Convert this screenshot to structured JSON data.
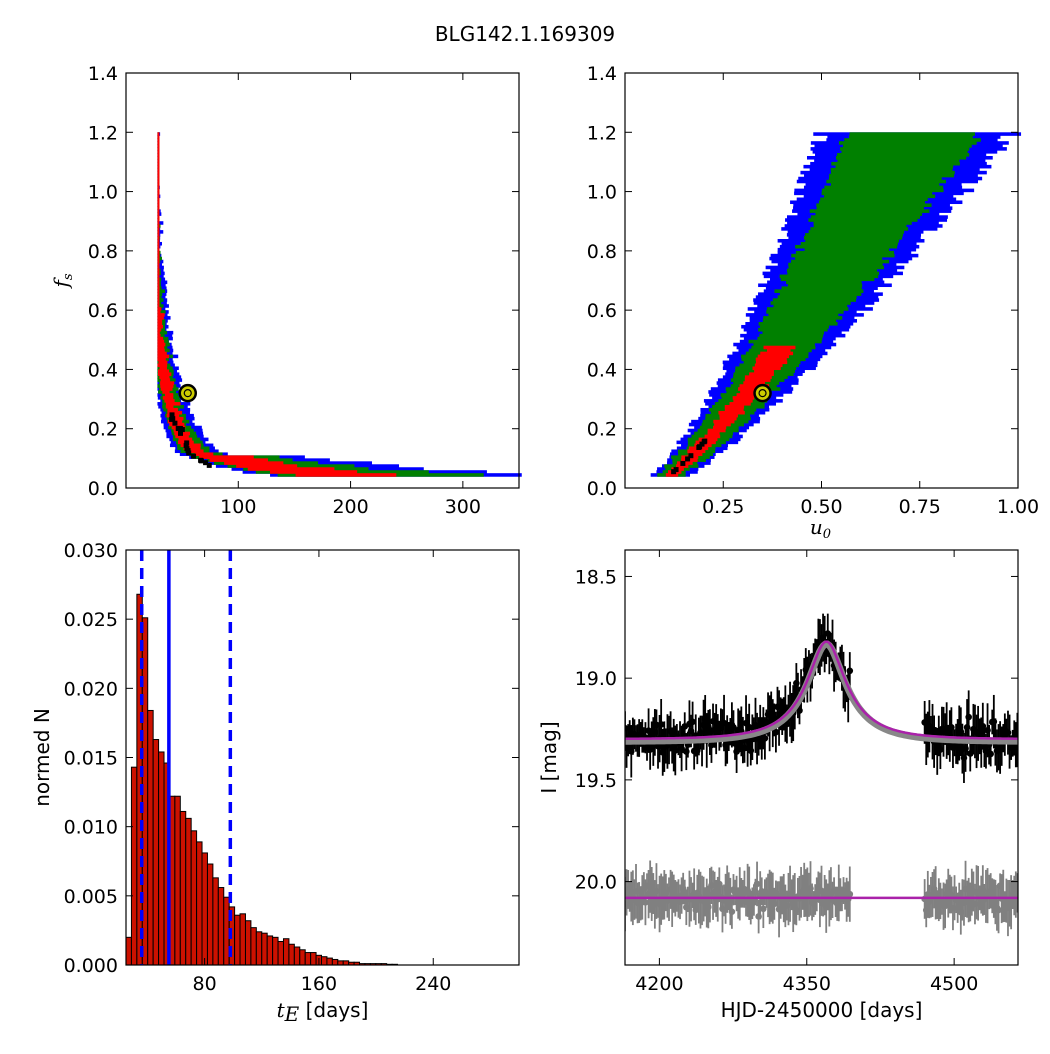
{
  "title": "BLG142.1.169309",
  "colors": {
    "blue": "#0000ff",
    "green": "#008000",
    "red": "#ff0000",
    "black": "#000000",
    "hist_fill": "#cc1100",
    "model": "#aa22aa",
    "residual": "#808080",
    "best_fit_marker": "#cccc00"
  },
  "chart_data": [
    {
      "id": "fs-vs-tE",
      "type": "heatmap",
      "title": "",
      "xlabel": "",
      "ylabel": "f_s",
      "xlim": [
        0,
        350
      ],
      "ylim": [
        0.0,
        1.4
      ],
      "xticks": [
        100,
        200,
        300
      ],
      "yticks": [
        0.0,
        0.2,
        0.4,
        0.6,
        0.8,
        1.0,
        1.2,
        1.4
      ],
      "xtick_labels": [
        "100",
        "200",
        "300"
      ],
      "ytick_labels": [
        "0.0",
        "0.2",
        "0.4",
        "0.6",
        "0.8",
        "1.0",
        "1.2",
        "1.4"
      ],
      "levels": [
        "blue",
        "green",
        "red",
        "black"
      ],
      "ridge": "tE = 20.3 / fs^0.5 approx (curved band)",
      "best_fit": {
        "tE": 55,
        "fs": 0.32
      }
    },
    {
      "id": "fs-vs-u0",
      "type": "heatmap",
      "title": "",
      "xlabel": "u_0",
      "ylabel": "",
      "xlim": [
        0.0,
        1.0
      ],
      "ylim": [
        0.0,
        1.4
      ],
      "xticks": [
        0.25,
        0.5,
        0.75,
        1.0
      ],
      "yticks": [
        0.0,
        0.2,
        0.4,
        0.6,
        0.8,
        1.0,
        1.2,
        1.4
      ],
      "xtick_labels": [
        "0.25",
        "0.50",
        "0.75",
        "1.00"
      ],
      "ytick_labels": [
        "0.0",
        "0.2",
        "0.4",
        "0.6",
        "0.8",
        "1.0",
        "1.2",
        "1.4"
      ],
      "levels": [
        "blue",
        "green",
        "red",
        "black"
      ],
      "best_fit": {
        "u0": 0.35,
        "fs": 0.32
      }
    },
    {
      "id": "tE-histogram",
      "type": "bar",
      "title": "",
      "xlabel": "t_E",
      "xlabel_suffix": "[days]",
      "ylabel": "normed N",
      "xlim": [
        25,
        300
      ],
      "ylim": [
        0.0,
        0.03
      ],
      "xticks": [
        80,
        160,
        240
      ],
      "yticks": [
        0.0,
        0.005,
        0.01,
        0.015,
        0.02,
        0.025,
        0.03
      ],
      "xtick_labels": [
        "80",
        "160",
        "240"
      ],
      "ytick_labels": [
        "0.000",
        "0.005",
        "0.010",
        "0.015",
        "0.020",
        "0.025",
        "0.030"
      ],
      "bin_width": 3.8,
      "bin_start": 25,
      "values": [
        0.002,
        0.0143,
        0.0268,
        0.0251,
        0.0184,
        0.0163,
        0.0154,
        0.0146,
        0.0122,
        0.0122,
        0.0111,
        0.0106,
        0.0097,
        0.0089,
        0.0081,
        0.0073,
        0.0063,
        0.0056,
        0.0049,
        0.0042,
        0.0036,
        0.0037,
        0.0032,
        0.0027,
        0.0024,
        0.0023,
        0.0021,
        0.002,
        0.0017,
        0.0019,
        0.0015,
        0.0013,
        0.0011,
        0.0009,
        0.0009,
        0.0007,
        0.0006,
        0.0005,
        0.0004,
        0.0003,
        0.0003,
        0.0002,
        0.0002,
        0.0001,
        0.0001,
        0.0001,
        0.0001,
        0.0001,
        5e-05,
        5e-05
      ],
      "median": 55,
      "percentile_lines": [
        36,
        98
      ]
    },
    {
      "id": "light-curve",
      "type": "scatter",
      "title": "",
      "xlabel": "HJD-2450000 [days]",
      "ylabel": "I [mag]",
      "xlim": [
        4165,
        4565
      ],
      "ylim": [
        20.41,
        18.37
      ],
      "xticks": [
        4200,
        4350,
        4500
      ],
      "yticks": [
        18.5,
        19.0,
        19.5,
        20.0
      ],
      "xtick_labels": [
        "4200",
        "4350",
        "4500"
      ],
      "ytick_labels": [
        "18.5",
        "19.0",
        "19.5",
        "20.0"
      ],
      "model": {
        "baseline": 19.3,
        "peak": 18.82,
        "t0": 4370,
        "tE": 55,
        "u0": 0.35
      },
      "residual_baseline": 20.08,
      "series": [
        {
          "role": "data",
          "color": "black"
        },
        {
          "role": "residuals",
          "color": "gray"
        }
      ]
    }
  ]
}
